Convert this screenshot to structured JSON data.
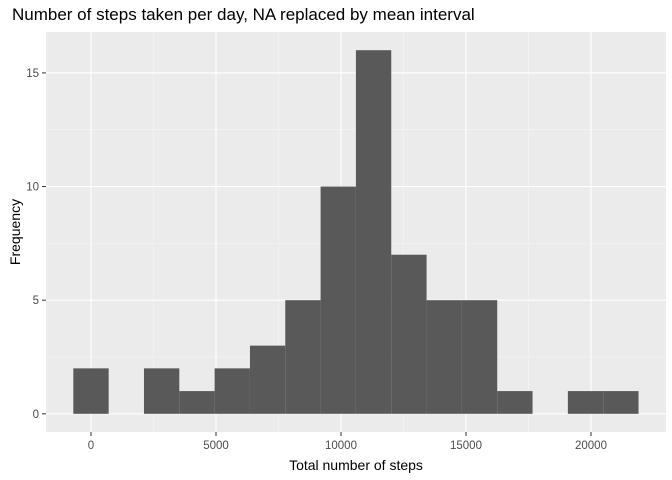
{
  "chart_data": {
    "type": "bar",
    "title": "Number of steps taken per day, NA replaced by mean interval",
    "xlabel": "Total number of steps",
    "ylabel": "Frequency",
    "xlim": [
      -1800,
      23000
    ],
    "ylim": [
      -0.8,
      16.8
    ],
    "x_ticks": [
      0,
      5000,
      10000,
      15000,
      20000
    ],
    "y_ticks": [
      0,
      5,
      10,
      15
    ],
    "bin_width": 1413,
    "bins": [
      {
        "start": -707,
        "end": 706,
        "count": 2
      },
      {
        "start": 706,
        "end": 2119,
        "count": 0
      },
      {
        "start": 2119,
        "end": 3532,
        "count": 2
      },
      {
        "start": 3532,
        "end": 4945,
        "count": 1
      },
      {
        "start": 4945,
        "end": 6358,
        "count": 2
      },
      {
        "start": 6358,
        "end": 7771,
        "count": 3
      },
      {
        "start": 7771,
        "end": 9184,
        "count": 5
      },
      {
        "start": 9184,
        "end": 10597,
        "count": 10
      },
      {
        "start": 10597,
        "end": 12010,
        "count": 16
      },
      {
        "start": 12010,
        "end": 13423,
        "count": 7
      },
      {
        "start": 13423,
        "end": 14836,
        "count": 5
      },
      {
        "start": 14836,
        "end": 16249,
        "count": 5
      },
      {
        "start": 16249,
        "end": 17662,
        "count": 1
      },
      {
        "start": 17662,
        "end": 19075,
        "count": 0
      },
      {
        "start": 19075,
        "end": 20488,
        "count": 1
      },
      {
        "start": 20488,
        "end": 21901,
        "count": 1
      }
    ],
    "grid": true,
    "legend": "none"
  },
  "colors": {
    "panel_background": "#ebebeb",
    "grid_major": "#ffffff",
    "grid_minor": "#f5f5f5",
    "bar_fill": "#595959",
    "tick_text": "#4d4d4d",
    "tick_mark": "#333333"
  }
}
